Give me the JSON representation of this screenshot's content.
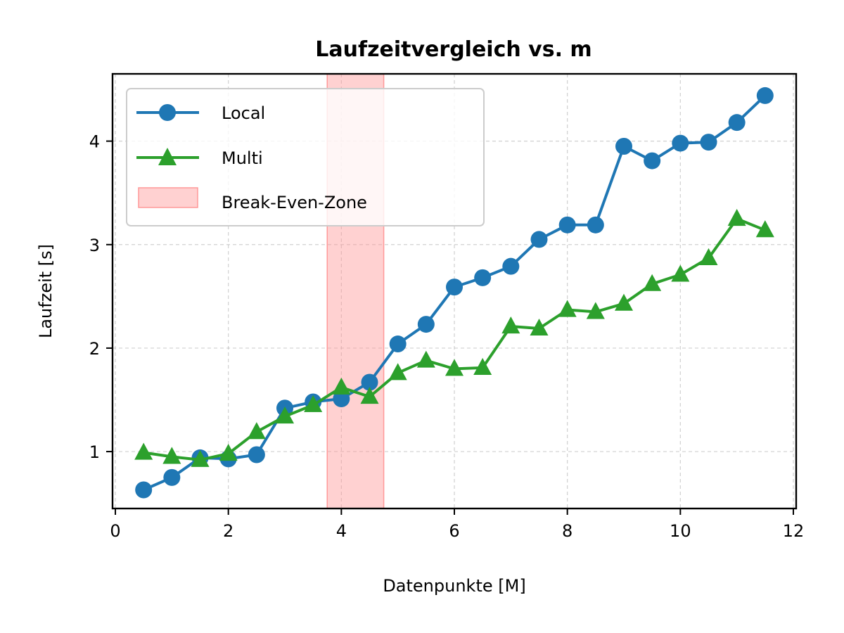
{
  "chart_data": {
    "type": "line",
    "title": "Laufzeitvergleich vs. m",
    "xlabel": "Datenpunkte [M]",
    "ylabel": "Laufzeit [s]",
    "xlim": [
      -0.05,
      12.05
    ],
    "ylim": [
      0.45,
      4.65
    ],
    "xticks": [
      0,
      2,
      4,
      6,
      8,
      10,
      12
    ],
    "xtick_labels": [
      "0",
      "2",
      "4",
      "6",
      "8",
      "10",
      "12"
    ],
    "yticks": [
      1,
      2,
      3,
      4
    ],
    "ytick_labels": [
      "1",
      "2",
      "3",
      "4"
    ],
    "grid": true,
    "legend_position": "top-left",
    "x": [
      0.5,
      1.0,
      1.5,
      2.0,
      2.5,
      3.0,
      3.5,
      4.0,
      4.5,
      5.0,
      5.5,
      6.0,
      6.5,
      7.0,
      7.5,
      8.0,
      8.5,
      9.0,
      9.5,
      10.0,
      10.5,
      11.0,
      11.5
    ],
    "series": [
      {
        "name": "Local",
        "color": "#1f77b4",
        "marker": "circle",
        "values": [
          0.63,
          0.75,
          0.94,
          0.93,
          0.97,
          1.42,
          1.48,
          1.51,
          1.67,
          2.04,
          2.23,
          2.59,
          2.68,
          2.79,
          3.05,
          3.19,
          3.19,
          3.95,
          3.81,
          3.98,
          3.99,
          4.18,
          4.44
        ]
      },
      {
        "name": "Multi",
        "color": "#2ca02c",
        "marker": "triangle",
        "values": [
          0.99,
          0.95,
          0.92,
          0.98,
          1.19,
          1.34,
          1.45,
          1.62,
          1.53,
          1.76,
          1.88,
          1.8,
          1.81,
          2.21,
          2.19,
          2.37,
          2.35,
          2.43,
          2.62,
          2.71,
          2.87,
          3.25,
          3.14
        ]
      }
    ],
    "band": {
      "name": "Break-Even-Zone",
      "x_start": 3.75,
      "x_end": 4.75,
      "color": "#ff9999"
    }
  }
}
